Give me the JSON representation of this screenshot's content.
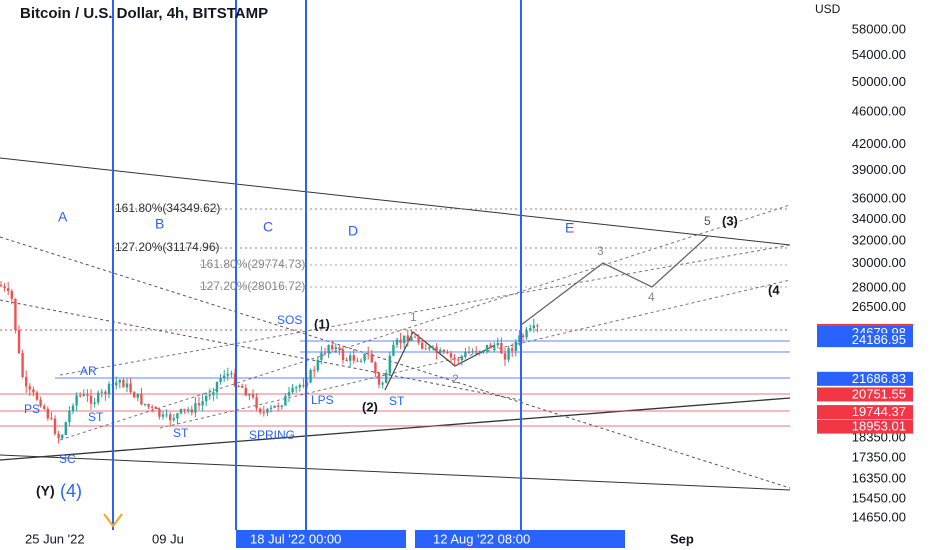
{
  "header": {
    "title": "Bitcoin / U.S. Dollar, 4h, BITSTAMP",
    "currency": "USD"
  },
  "price_axis": [
    "58000.00",
    "54000.00",
    "50000.00",
    "46000.00",
    "42000.00",
    "39000.00",
    "36000.00",
    "34000.00",
    "32000.00",
    "30000.00",
    "28000.00",
    "26500.00",
    "18350.00",
    "17350.00",
    "16350.00",
    "15450.00",
    "14650.00"
  ],
  "price_tags": [
    {
      "label": "24824.00",
      "kind": "red"
    },
    {
      "label": "24679.98",
      "kind": "blue"
    },
    {
      "label": "24186.95",
      "kind": "blue"
    },
    {
      "label": "21686.83",
      "kind": "blue"
    },
    {
      "label": "20751.55",
      "kind": "red"
    },
    {
      "label": "19744.37",
      "kind": "red"
    },
    {
      "label": "18953.01",
      "kind": "red"
    }
  ],
  "time_axis": {
    "labels": [
      "25 Jun '22",
      "09 Ju",
      "Sep"
    ],
    "highlighted": [
      "18 Jul '22  00:00",
      "12 Aug '22   08:00"
    ]
  },
  "fib_labels": [
    "161.80%(34349.62)",
    "127.20%(31174.96)",
    "161.80%(29774.73)",
    "127.20%(28016.72)"
  ],
  "phase_labels": [
    "A",
    "B",
    "C",
    "D",
    "E"
  ],
  "wave_labels": [
    "5",
    "(3)",
    "3",
    "4",
    "(4",
    "1",
    "2",
    "(1)",
    "(2)",
    "(Y)",
    "(4)"
  ],
  "wyckoff_labels": [
    "SOS",
    "AR",
    "PS",
    "ST",
    "ST",
    "SPRING",
    "LPS",
    "ST",
    "SC"
  ]
}
